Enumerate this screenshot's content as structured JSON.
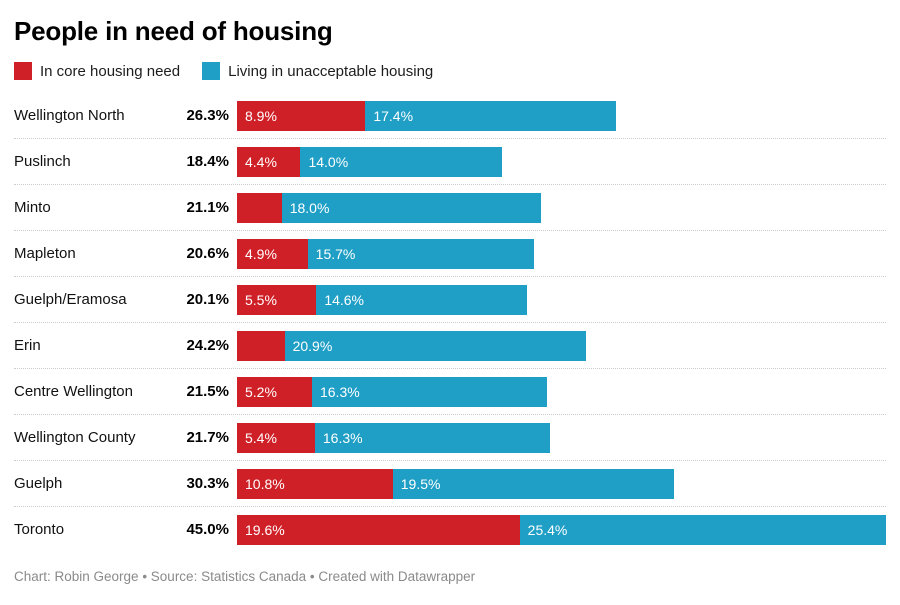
{
  "title": "People in need of housing",
  "colors": {
    "core": "#d02027",
    "unacceptable": "#1f9fc6"
  },
  "legend": {
    "items": [
      {
        "label": "In core housing need",
        "color": "#d02027"
      },
      {
        "label": "Living in unacceptable housing",
        "color": "#1f9fc6"
      }
    ]
  },
  "chart_data": {
    "type": "bar",
    "variant": "horizontal-stacked",
    "x_max": 45.0,
    "grid": false,
    "legend_position": "top",
    "series_names": [
      "In core housing need",
      "Living in unacceptable housing"
    ],
    "rows": [
      {
        "label": "Wellington North",
        "total": 26.3,
        "total_label": "26.3%",
        "core": 8.9,
        "core_label": "8.9%",
        "unacceptable": 17.4,
        "unacceptable_label": "17.4%"
      },
      {
        "label": "Puslinch",
        "total": 18.4,
        "total_label": "18.4%",
        "core": 4.4,
        "core_label": "4.4%",
        "unacceptable": 14.0,
        "unacceptable_label": "14.0%"
      },
      {
        "label": "Minto",
        "total": 21.1,
        "total_label": "21.1%",
        "core": 3.1,
        "core_label": "",
        "unacceptable": 18.0,
        "unacceptable_label": "18.0%"
      },
      {
        "label": "Mapleton",
        "total": 20.6,
        "total_label": "20.6%",
        "core": 4.9,
        "core_label": "4.9%",
        "unacceptable": 15.7,
        "unacceptable_label": "15.7%"
      },
      {
        "label": "Guelph/Eramosa",
        "total": 20.1,
        "total_label": "20.1%",
        "core": 5.5,
        "core_label": "5.5%",
        "unacceptable": 14.6,
        "unacceptable_label": "14.6%"
      },
      {
        "label": "Erin",
        "total": 24.2,
        "total_label": "24.2%",
        "core": 3.3,
        "core_label": "",
        "unacceptable": 20.9,
        "unacceptable_label": "20.9%"
      },
      {
        "label": "Centre Wellington",
        "total": 21.5,
        "total_label": "21.5%",
        "core": 5.2,
        "core_label": "5.2%",
        "unacceptable": 16.3,
        "unacceptable_label": "16.3%"
      },
      {
        "label": "Wellington County",
        "total": 21.7,
        "total_label": "21.7%",
        "core": 5.4,
        "core_label": "5.4%",
        "unacceptable": 16.3,
        "unacceptable_label": "16.3%"
      },
      {
        "label": "Guelph",
        "total": 30.3,
        "total_label": "30.3%",
        "core": 10.8,
        "core_label": "10.8%",
        "unacceptable": 19.5,
        "unacceptable_label": "19.5%"
      },
      {
        "label": "Toronto",
        "total": 45.0,
        "total_label": "45.0%",
        "core": 19.6,
        "core_label": "19.6%",
        "unacceptable": 25.4,
        "unacceptable_label": "25.4%"
      }
    ]
  },
  "footer": "Chart: Robin George • Source: Statistics Canada • Created with Datawrapper"
}
